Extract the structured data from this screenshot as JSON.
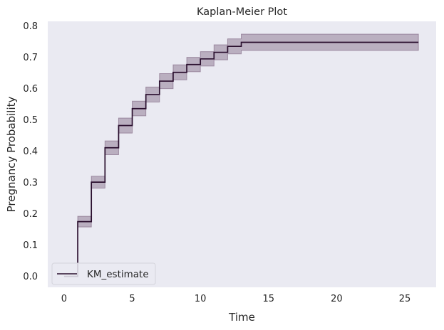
{
  "chart_data": {
    "type": "line",
    "step": "post",
    "title": "Kaplan-Meier Plot",
    "xlabel": "Time",
    "ylabel": "Pregnancy Probability",
    "xlim": [
      -1.2,
      27.3
    ],
    "ylim": [
      -0.035,
      0.815
    ],
    "xticks": [
      0,
      5,
      10,
      15,
      20,
      25
    ],
    "yticks": [
      0.0,
      0.1,
      0.2,
      0.3,
      0.4,
      0.5,
      0.6,
      0.7,
      0.8
    ],
    "ytick_labels": [
      "0.0",
      "0.1",
      "0.2",
      "0.3",
      "0.4",
      "0.5",
      "0.6",
      "0.7",
      "0.8"
    ],
    "grid": false,
    "background": "#eaeaf2",
    "line_color": "#2a0f2e",
    "band_color": "#6b4e6e",
    "legend": {
      "position": "lower-left",
      "entries": [
        "KM_estimate"
      ]
    },
    "series": [
      {
        "name": "KM_estimate",
        "x": [
          0,
          1,
          2,
          3,
          4,
          5,
          6,
          7,
          8,
          9,
          10,
          11,
          12,
          13,
          26
        ],
        "y": [
          0.0,
          0.175,
          0.301,
          0.411,
          0.482,
          0.536,
          0.581,
          0.624,
          0.652,
          0.677,
          0.695,
          0.716,
          0.735,
          0.748,
          0.748
        ],
        "lower": [
          0.0,
          0.158,
          0.282,
          0.389,
          0.458,
          0.513,
          0.557,
          0.6,
          0.628,
          0.654,
          0.672,
          0.692,
          0.711,
          0.722,
          0.722
        ],
        "upper": [
          0.0,
          0.192,
          0.32,
          0.433,
          0.506,
          0.56,
          0.605,
          0.648,
          0.676,
          0.7,
          0.718,
          0.74,
          0.759,
          0.774,
          0.774
        ]
      }
    ]
  }
}
